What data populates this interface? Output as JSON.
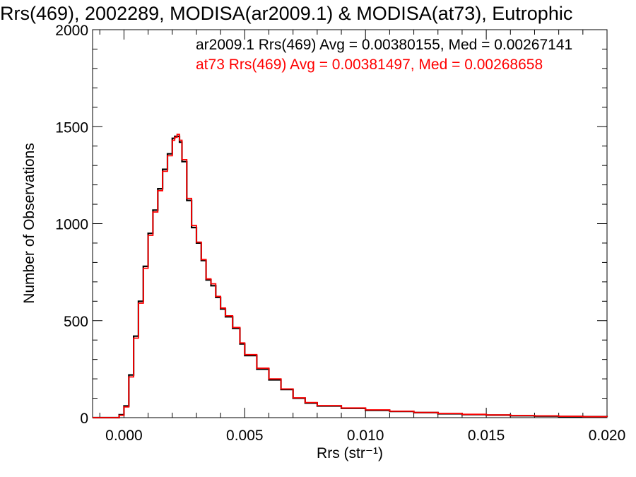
{
  "chart_data": {
    "type": "line",
    "title": "Rrs(469), 2002289, MODISA(ar2009.1) & MODISA(at73), Eutrophic",
    "xlabel": "Rrs (str⁻¹)",
    "ylabel": "Number of Observations",
    "xlim": [
      -0.0013,
      0.02
    ],
    "ylim": [
      0,
      2000
    ],
    "x_ticks": [
      0.0,
      0.005,
      0.01,
      0.015,
      0.02
    ],
    "x_tick_labels": [
      "0.000",
      "0.005",
      "0.010",
      "0.015",
      "0.020"
    ],
    "y_ticks": [
      0,
      500,
      1000,
      1500,
      2000
    ],
    "y_tick_labels": [
      "0",
      "500",
      "1000",
      "1500",
      "2000"
    ],
    "grid": false,
    "legend": "top-right",
    "series": [
      {
        "name": "ar2009.1",
        "annotation": "ar2009.1 Rrs(469) Avg = 0.00380155, Med = 0.00267141",
        "color": "#000000",
        "x": [
          -0.0013,
          -0.0005,
          -0.0002,
          0.0,
          0.0002,
          0.0004,
          0.0006,
          0.0008,
          0.001,
          0.0012,
          0.0014,
          0.0016,
          0.0018,
          0.002,
          0.0021,
          0.0022,
          0.0023,
          0.0024,
          0.0026,
          0.0028,
          0.003,
          0.0032,
          0.0034,
          0.0036,
          0.0038,
          0.004,
          0.0042,
          0.0045,
          0.0048,
          0.005,
          0.0055,
          0.006,
          0.0065,
          0.007,
          0.0075,
          0.008,
          0.009,
          0.01,
          0.011,
          0.012,
          0.013,
          0.014,
          0.015,
          0.016,
          0.017,
          0.018,
          0.019,
          0.02
        ],
        "y": [
          0,
          0,
          15,
          60,
          220,
          420,
          600,
          780,
          950,
          1070,
          1180,
          1280,
          1360,
          1440,
          1450,
          1450,
          1420,
          1320,
          1120,
          980,
          900,
          810,
          710,
          680,
          620,
          560,
          520,
          460,
          380,
          320,
          250,
          195,
          145,
          100,
          75,
          60,
          48,
          38,
          32,
          26,
          20,
          16,
          13,
          10,
          8,
          6,
          5,
          4
        ]
      },
      {
        "name": "at73",
        "annotation": "at73 Rrs(469) Avg = 0.00381497, Med = 0.00268658",
        "color": "#ff0000",
        "x": [
          -0.0013,
          -0.0005,
          -0.0002,
          0.0,
          0.0002,
          0.0004,
          0.0006,
          0.0008,
          0.001,
          0.0012,
          0.0014,
          0.0016,
          0.0018,
          0.002,
          0.0021,
          0.0022,
          0.0023,
          0.0024,
          0.0026,
          0.0028,
          0.003,
          0.0032,
          0.0034,
          0.0036,
          0.0038,
          0.004,
          0.0042,
          0.0045,
          0.0048,
          0.005,
          0.0055,
          0.006,
          0.0065,
          0.007,
          0.0075,
          0.008,
          0.009,
          0.01,
          0.011,
          0.012,
          0.013,
          0.014,
          0.015,
          0.016,
          0.017,
          0.018,
          0.019,
          0.02
        ],
        "y": [
          0,
          0,
          12,
          55,
          210,
          410,
          590,
          770,
          940,
          1060,
          1170,
          1270,
          1350,
          1430,
          1445,
          1460,
          1430,
          1330,
          1130,
          990,
          905,
          815,
          715,
          690,
          625,
          565,
          525,
          465,
          385,
          325,
          255,
          200,
          148,
          102,
          78,
          62,
          50,
          40,
          33,
          27,
          21,
          17,
          14,
          11,
          9,
          7,
          5,
          4
        ]
      }
    ]
  }
}
